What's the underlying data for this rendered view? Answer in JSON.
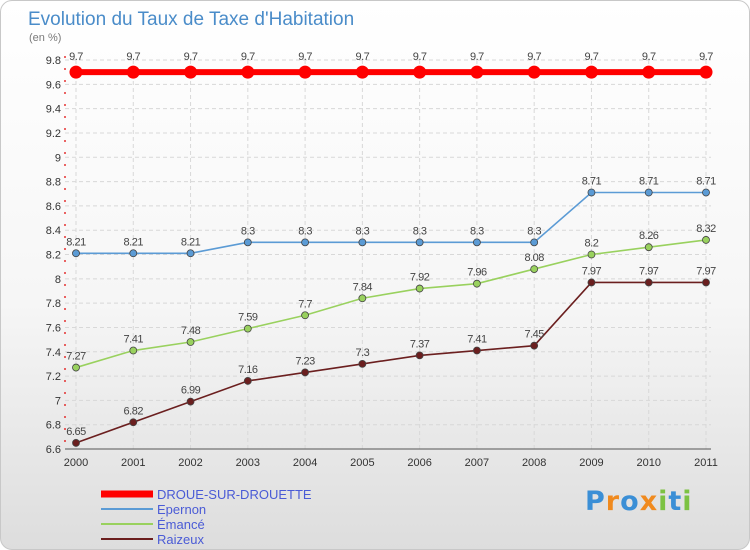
{
  "chart_data": {
    "type": "line",
    "title": "Evolution du Taux de Taxe d'Habitation",
    "subtitle": "(en %)",
    "xlabel": "",
    "ylabel": "",
    "categories": [
      "2000",
      "2001",
      "2002",
      "2003",
      "2004",
      "2005",
      "2006",
      "2007",
      "2008",
      "2009",
      "2010",
      "2011"
    ],
    "ylim": [
      6.6,
      9.8
    ],
    "yticks": [
      "6.6",
      "6.8",
      "7",
      "7.2",
      "7.4",
      "7.6",
      "7.8",
      "8",
      "8.2",
      "8.4",
      "8.6",
      "8.8",
      "9",
      "9.2",
      "9.4",
      "9.6",
      "9.8"
    ],
    "grid": true,
    "legend_position": "bottom-left",
    "series": [
      {
        "name": "DROUE-SUR-DROUETTE",
        "color": "#ff0000",
        "values": [
          9.7,
          9.7,
          9.7,
          9.7,
          9.7,
          9.7,
          9.7,
          9.7,
          9.7,
          9.7,
          9.7,
          9.7
        ],
        "labels": [
          "9.7",
          "9.7",
          "9.7",
          "9.7",
          "9.7",
          "9.7",
          "9.7",
          "9.7",
          "9.7",
          "9.7",
          "9.7",
          "9.7"
        ]
      },
      {
        "name": "Epernon",
        "color": "#5b9bd5",
        "values": [
          8.21,
          8.21,
          8.21,
          8.3,
          8.3,
          8.3,
          8.3,
          8.3,
          8.3,
          8.71,
          8.71,
          8.71
        ],
        "labels": [
          "8.21",
          "8.21",
          "8.21",
          "8.3",
          "8.3",
          "8.3",
          "8.3",
          "8.3",
          "8.3",
          "8.71",
          "8.71",
          "8.71"
        ]
      },
      {
        "name": "Émancé",
        "color": "#99d15e",
        "values": [
          7.27,
          7.41,
          7.48,
          7.59,
          7.7,
          7.84,
          7.92,
          7.96,
          8.08,
          8.2,
          8.26,
          8.32
        ],
        "labels": [
          "7.27",
          "7.41",
          "7.48",
          "7.59",
          "7.7",
          "7.84",
          "7.92",
          "7.96",
          "8.08",
          "8.2",
          "8.26",
          "8.32"
        ]
      },
      {
        "name": "Raizeux",
        "color": "#6b1f1f",
        "values": [
          6.65,
          6.82,
          6.99,
          7.16,
          7.23,
          7.3,
          7.37,
          7.41,
          7.45,
          7.97,
          7.97,
          7.97
        ],
        "labels": [
          "6.65",
          "6.82",
          "6.99",
          "7.16",
          "7.23",
          "7.3",
          "7.37",
          "7.41",
          "7.45",
          "7.97",
          "7.97",
          "7.97"
        ]
      }
    ]
  },
  "brand": {
    "logo_letters": [
      "P",
      "r",
      "o",
      "x",
      "i",
      "t",
      "i"
    ],
    "logo_colors": [
      "#3b8fd6",
      "#f08a1e",
      "#3b8fd6",
      "#f08a1e",
      "#7cc242",
      "#3b8fd6",
      "#7cc242"
    ]
  }
}
